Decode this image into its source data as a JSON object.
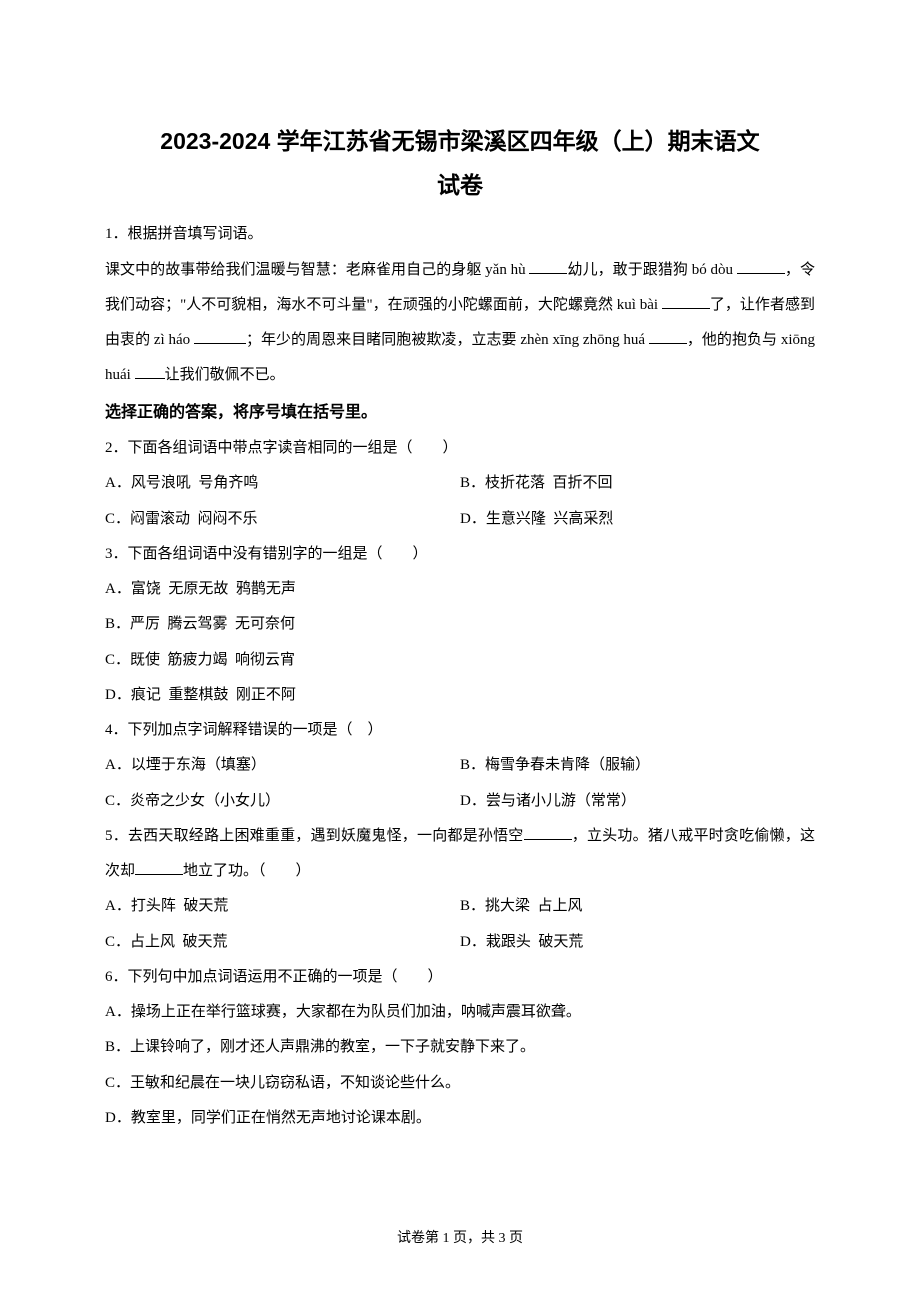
{
  "title_line1": "2023-2024 学年江苏省无锡市梁溪区四年级（上）期末语文",
  "title_line2": "试卷",
  "q1": {
    "num": "1．",
    "stem": "根据拼音填写词语。",
    "body_pre": "课文中的故事带给我们温暖与智慧：老麻雀用自己的身躯 yǎn hù ",
    "body_a": "幼儿，敢于跟猎狗 bó dòu ",
    "body_b": "，令我们动容；\"人不可貌相，海水不可斗量\"，在顽强的小陀螺面前，大陀螺竟然 kuì bài ",
    "body_c": "了，让作者感到由衷的 zì háo ",
    "body_d": "；年少的周恩来目睹同胞被欺凌，立志要 zhèn xīng zhōng huá ",
    "body_e": "，他的抱负与 xiōng huái ",
    "body_f": "让我们敬佩不已。"
  },
  "section_heading": "选择正确的答案，将序号填在括号里。",
  "q2": {
    "num": "2．",
    "stem": "下面各组词语中带点字读音相同的一组是（　　）",
    "opts": {
      "A": "A．风号浪吼 号角齐鸣",
      "B": "B．枝折花落 百折不回",
      "C": "C．闷雷滚动 闷闷不乐",
      "D": "D．生意兴隆 兴高采烈"
    }
  },
  "q3": {
    "num": "3．",
    "stem": "下面各组词语中没有错别字的一组是（　　）",
    "opts": {
      "A": "A．富饶 无原无故 鸦鹊无声",
      "B": "B．严厉 腾云驾雾 无可奈何",
      "C": "C．既使 筋疲力竭 响彻云宵",
      "D": "D．痕记 重整棋鼓 刚正不阿"
    }
  },
  "q4": {
    "num": "4．",
    "stem": "下列加点字词解释错误的一项是（　）",
    "opts": {
      "A": "A．以堙于东海（填塞）",
      "B": "B．梅雪争春未肯降（服输）",
      "C": "C．炎帝之少女（小女儿）",
      "D": "D．尝与诸小儿游（常常）"
    }
  },
  "q5": {
    "num": "5．",
    "stem_pre": "去西天取经路上困难重重，遇到妖魔鬼怪，一向都是孙悟空",
    "stem_mid": "，立头功。猪八戒平时贪吃偷懒，这次却",
    "stem_post": "地立了功。（　　）",
    "opts": {
      "A": "A．打头阵 破天荒",
      "B": "B．挑大梁 占上风",
      "C": "C．占上风 破天荒",
      "D": "D．栽跟头 破天荒"
    }
  },
  "q6": {
    "num": "6．",
    "stem": "下列句中加点词语运用不正确的一项是（　　）",
    "opts": {
      "A": "A．操场上正在举行篮球赛，大家都在为队员们加油，呐喊声震耳欲聋。",
      "B": "B．上课铃响了，刚才还人声鼎沸的教室，一下子就安静下来了。",
      "C": "C．王敏和纪晨在一块儿窃窃私语，不知谈论些什么。",
      "D": "D．教室里，同学们正在悄然无声地讨论课本剧。"
    }
  },
  "footer": "试卷第 1 页，共 3 页"
}
